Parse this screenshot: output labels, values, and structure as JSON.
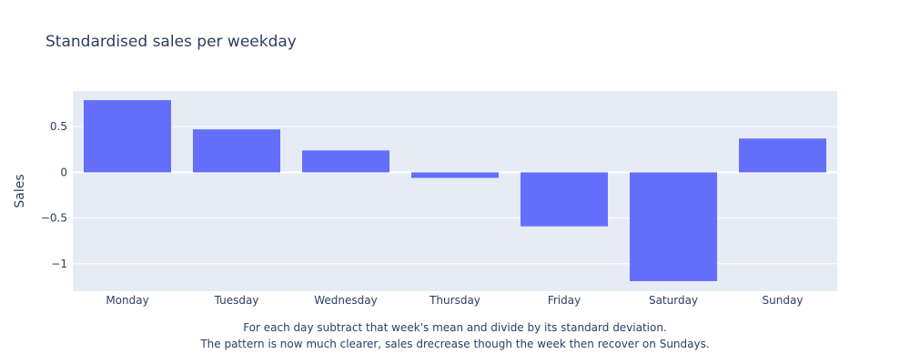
{
  "chart_data": {
    "type": "bar",
    "title": "Standardised sales per weekday",
    "xlabel": "",
    "ylabel": "Sales",
    "categories": [
      "Monday",
      "Tuesday",
      "Wednesday",
      "Thursday",
      "Friday",
      "Saturday",
      "Sunday"
    ],
    "values": [
      0.79,
      0.47,
      0.24,
      -0.06,
      -0.59,
      -1.19,
      0.37
    ],
    "ylim": [
      -1.3,
      0.89
    ],
    "yticks": [
      0.5,
      0,
      -0.5,
      -1
    ],
    "ytick_labels": [
      "0.5",
      "0",
      "−0.5",
      "−1"
    ],
    "grid": true,
    "legend": "none",
    "colors": {
      "bar": "#636efa",
      "plot_bg": "#e5ecf6",
      "grid": "#ffffff",
      "text": "#2a3f5f"
    },
    "annotations": [
      "For each day subtract that week's mean and divide by its standard deviation.",
      "The pattern is now much clearer, sales drecrease though the week then recover on Sundays."
    ]
  }
}
